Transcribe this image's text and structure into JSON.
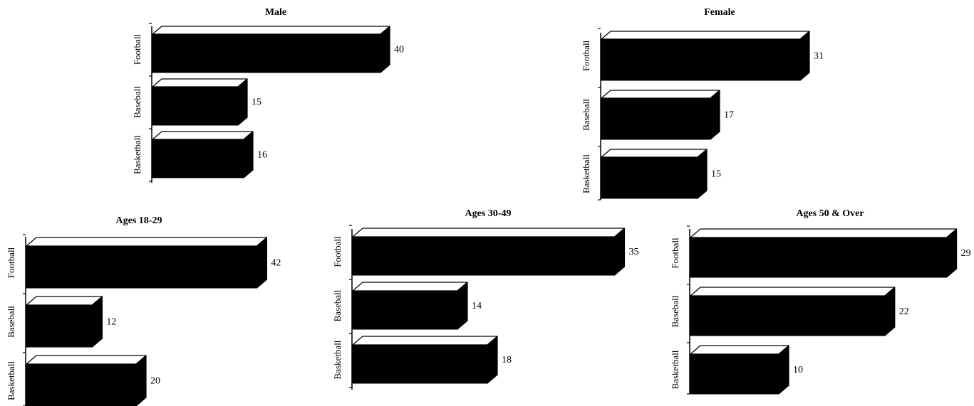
{
  "chart_data": [
    {
      "type": "bar",
      "title": "Male",
      "categories": [
        "Football",
        "Baseball",
        "Basketball"
      ],
      "values": [
        40,
        15,
        16
      ],
      "value_labels": [
        "40",
        "15",
        "16"
      ],
      "orientation": "horizontal",
      "style": "3d",
      "bar_color": "#000000",
      "grid": false,
      "legend": "none"
    },
    {
      "type": "bar",
      "title": "Female",
      "categories": [
        "Football",
        "Baseball",
        "Basketball"
      ],
      "values": [
        31,
        17,
        15
      ],
      "value_labels": [
        "31",
        "17",
        "15"
      ],
      "orientation": "horizontal",
      "style": "3d",
      "bar_color": "#000000",
      "grid": false,
      "legend": "none"
    },
    {
      "type": "bar",
      "title": "Ages 18-29",
      "categories": [
        "Football",
        "Baseball",
        "Basketball"
      ],
      "values": [
        42,
        12,
        20
      ],
      "value_labels": [
        "42",
        "12",
        "20"
      ],
      "orientation": "horizontal",
      "style": "3d",
      "bar_color": "#000000",
      "grid": false,
      "legend": "none"
    },
    {
      "type": "bar",
      "title": "Ages 30-49",
      "categories": [
        "Football",
        "Baseball",
        "Basketball"
      ],
      "values": [
        35,
        14,
        18
      ],
      "value_labels": [
        "35",
        "14",
        "18"
      ],
      "orientation": "horizontal",
      "style": "3d",
      "bar_color": "#000000",
      "grid": false,
      "legend": "none"
    },
    {
      "type": "bar",
      "title": "Ages 50 & Over",
      "categories": [
        "Football",
        "Baseball",
        "Basketball"
      ],
      "values": [
        29,
        22,
        10
      ],
      "value_labels": [
        "29",
        "22",
        "10"
      ],
      "orientation": "horizontal",
      "style": "3d",
      "bar_color": "#000000",
      "grid": false,
      "legend": "none"
    }
  ]
}
